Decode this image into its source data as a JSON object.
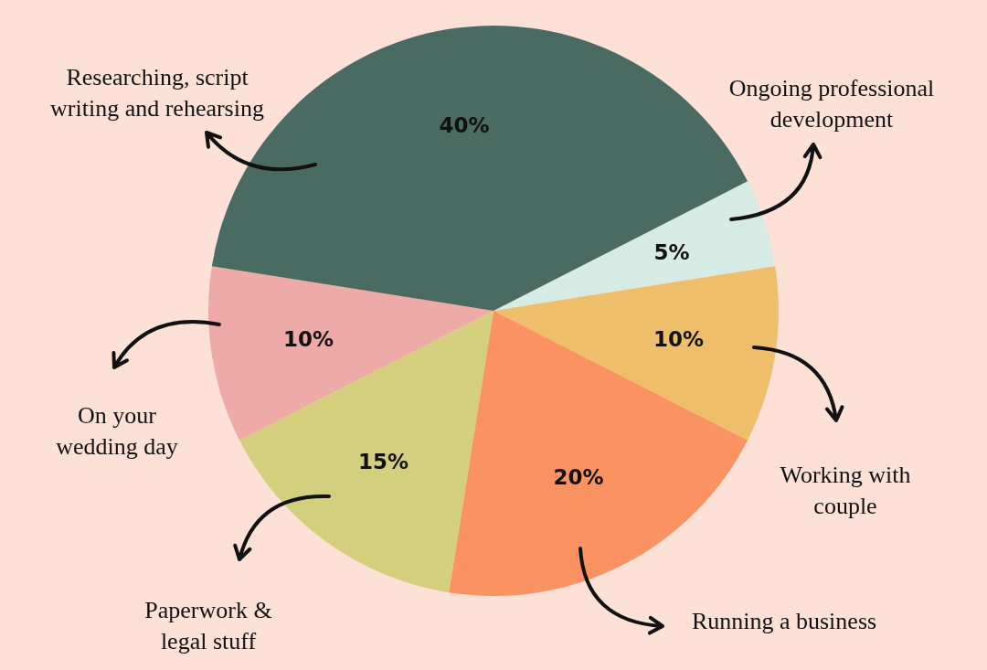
{
  "chart_data": {
    "type": "pie",
    "categories": [
      "Ongoing professional development",
      "Working with couple",
      "Running a business",
      "Paperwork & legal stuff",
      "On your wedding day",
      "Researching, script writing and rehearsing"
    ],
    "values": [
      5,
      10,
      20,
      15,
      10,
      40
    ],
    "value_labels": [
      "5%",
      "10%",
      "20%",
      "15%",
      "10%",
      "40%"
    ],
    "colors": [
      "#d6ebe3",
      "#efbe6b",
      "#fb9262",
      "#d3cf7d",
      "#eeaaa6",
      "#4a6b62"
    ]
  }
}
